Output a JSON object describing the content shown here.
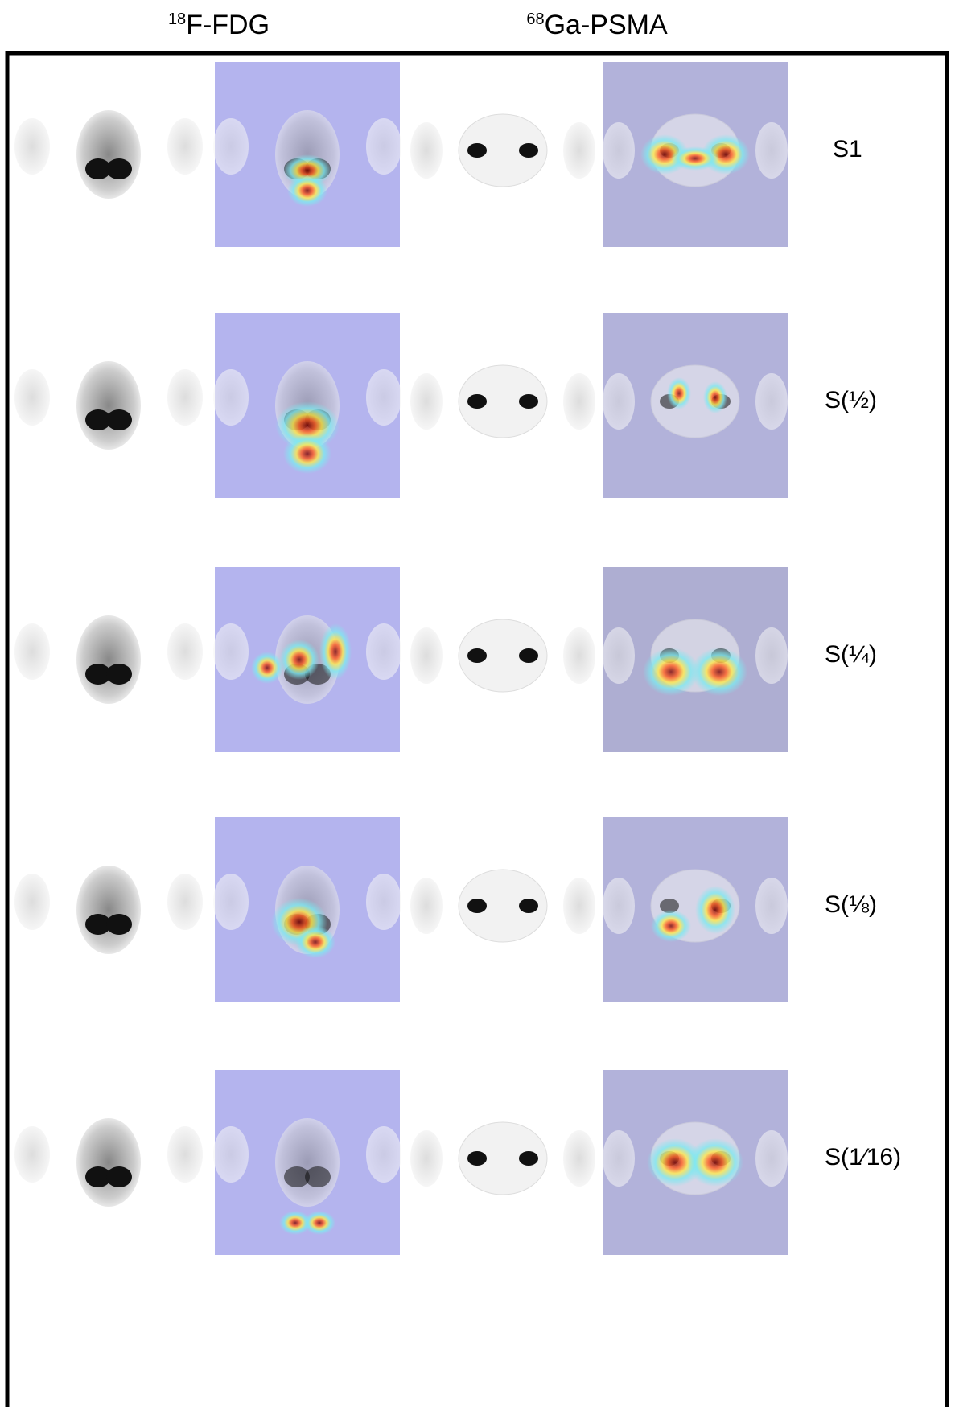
{
  "header": {
    "columns": [
      {
        "superscript": "18",
        "name": "F-FDG"
      },
      {
        "superscript": "68",
        "name": "Ga-PSMA"
      }
    ]
  },
  "rows": [
    {
      "label": "S1"
    },
    {
      "label": "S(½)"
    },
    {
      "label": "S(¼)"
    },
    {
      "label": "S(⅛)"
    },
    {
      "label": "S(1⁄16)"
    }
  ]
}
